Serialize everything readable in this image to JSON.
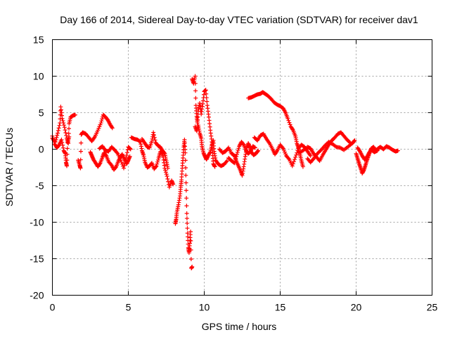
{
  "chart_data": {
    "type": "scatter",
    "title": "Day 166 of 2014, Sidereal Day-to-day VTEC variation (SDTVAR) for receiver dav1",
    "xlabel": "GPS time / hours",
    "ylabel": "SDTVAR / TECUs",
    "xlim": [
      0,
      25
    ],
    "ylim": [
      -20,
      15
    ],
    "xticks": [
      0,
      5,
      10,
      15,
      20,
      25
    ],
    "yticks": [
      -20,
      -15,
      -10,
      -5,
      0,
      5,
      10,
      15
    ],
    "grid": true,
    "marker": "+",
    "color": "#ff0000",
    "segments": [
      {
        "name": "seg-early-spike",
        "points": [
          [
            0.0,
            1.5
          ],
          [
            0.2,
            1.0
          ],
          [
            0.35,
            2.2
          ],
          [
            0.5,
            3.6
          ],
          [
            0.55,
            5.8
          ],
          [
            0.65,
            4.2
          ],
          [
            0.8,
            3.0
          ],
          [
            0.95,
            1.5
          ],
          [
            1.05,
            0.8
          ],
          [
            1.1,
            3.5
          ],
          [
            1.2,
            4.4
          ],
          [
            1.35,
            4.6
          ],
          [
            1.5,
            4.7
          ]
        ]
      },
      {
        "name": "seg-early-low",
        "points": [
          [
            0.0,
            1.8
          ],
          [
            0.15,
            0.7
          ],
          [
            0.3,
            0.2
          ],
          [
            0.45,
            0.6
          ],
          [
            0.6,
            1.3
          ],
          [
            0.75,
            -0.2
          ],
          [
            0.85,
            -0.6
          ],
          [
            0.9,
            -1.8
          ],
          [
            0.95,
            -2.3
          ],
          [
            1.0,
            0.9
          ],
          [
            1.1,
            1.7
          ]
        ]
      },
      {
        "name": "seg-2h",
        "points": [
          [
            1.7,
            -1.5
          ],
          [
            1.8,
            -2.2
          ],
          [
            1.85,
            -2.6
          ],
          [
            1.9,
            2.0
          ],
          [
            2.0,
            2.3
          ],
          [
            2.2,
            2.1
          ],
          [
            2.4,
            1.6
          ],
          [
            2.6,
            1.1
          ],
          [
            2.8,
            1.7
          ],
          [
            3.0,
            2.6
          ],
          [
            3.2,
            3.6
          ],
          [
            3.35,
            4.7
          ],
          [
            3.5,
            4.4
          ],
          [
            3.65,
            4.0
          ],
          [
            3.8,
            3.4
          ],
          [
            3.95,
            2.9
          ]
        ]
      },
      {
        "name": "seg-3-5h",
        "points": [
          [
            2.5,
            -0.4
          ],
          [
            2.6,
            -0.9
          ],
          [
            2.7,
            -1.4
          ],
          [
            2.85,
            -1.9
          ],
          [
            3.0,
            -2.4
          ],
          [
            3.15,
            -1.9
          ],
          [
            3.3,
            -1.1
          ],
          [
            3.4,
            -0.5
          ],
          [
            3.55,
            -0.9
          ],
          [
            3.7,
            -1.7
          ],
          [
            3.9,
            -2.2
          ],
          [
            4.05,
            -2.8
          ],
          [
            4.2,
            -2.4
          ],
          [
            4.35,
            -1.6
          ],
          [
            4.5,
            -1.0
          ],
          [
            4.6,
            -0.7
          ],
          [
            4.75,
            -1.4
          ],
          [
            4.9,
            -2.0
          ],
          [
            5.0,
            -1.5
          ],
          [
            5.1,
            -1.0
          ]
        ]
      },
      {
        "name": "seg-3-5h-b",
        "points": [
          [
            3.1,
            0.1
          ],
          [
            3.3,
            0.4
          ],
          [
            3.5,
            -0.2
          ],
          [
            3.7,
            -0.3
          ],
          [
            3.9,
            0.3
          ],
          [
            4.1,
            -0.1
          ],
          [
            4.3,
            -0.6
          ],
          [
            4.5,
            -1.5
          ],
          [
            4.7,
            -2.6
          ],
          [
            4.85,
            -1.2
          ],
          [
            5.0,
            0.3
          ],
          [
            5.15,
            0.0
          ]
        ]
      },
      {
        "name": "seg-5-7h",
        "points": [
          [
            5.2,
            1.6
          ],
          [
            5.4,
            1.4
          ],
          [
            5.6,
            1.3
          ],
          [
            5.8,
            1.0
          ],
          [
            5.9,
            -0.2
          ],
          [
            6.0,
            -0.8
          ],
          [
            6.1,
            -1.8
          ],
          [
            6.25,
            -2.5
          ],
          [
            6.4,
            -2.3
          ],
          [
            6.55,
            -1.9
          ],
          [
            6.7,
            -2.7
          ],
          [
            6.85,
            -2.3
          ],
          [
            7.0,
            -1.2
          ],
          [
            7.1,
            -0.4
          ],
          [
            7.2,
            -0.3
          ],
          [
            7.3,
            -1.1
          ],
          [
            7.4,
            -2.6
          ],
          [
            7.55,
            -3.7
          ],
          [
            7.7,
            -5.2
          ],
          [
            7.85,
            -4.3
          ],
          [
            7.95,
            -4.8
          ]
        ]
      },
      {
        "name": "seg-6-7h-b",
        "points": [
          [
            5.9,
            1.4
          ],
          [
            6.1,
            0.8
          ],
          [
            6.25,
            0.3
          ],
          [
            6.4,
            0.2
          ],
          [
            6.55,
            1.1
          ],
          [
            6.65,
            2.3
          ],
          [
            6.8,
            0.9
          ],
          [
            6.95,
            0.5
          ],
          [
            7.1,
            0.3
          ],
          [
            7.25,
            -0.2
          ],
          [
            7.4,
            -0.6
          ],
          [
            7.5,
            -1.6
          ],
          [
            7.6,
            -2.6
          ]
        ]
      },
      {
        "name": "seg-8-9h-dip",
        "points": [
          [
            8.1,
            -10.2
          ],
          [
            8.15,
            -9.6
          ],
          [
            8.2,
            -8.6
          ],
          [
            8.3,
            -7.6
          ],
          [
            8.4,
            -6.4
          ],
          [
            8.45,
            -5.2
          ],
          [
            8.5,
            -4.2
          ],
          [
            8.55,
            -2.6
          ],
          [
            8.6,
            -1.2
          ],
          [
            8.65,
            0.3
          ],
          [
            8.7,
            1.3
          ],
          [
            8.75,
            -0.5
          ],
          [
            8.8,
            -4.6
          ],
          [
            8.85,
            -8.8
          ],
          [
            8.9,
            -11.5
          ],
          [
            8.95,
            -13.5
          ],
          [
            9.0,
            -14.2
          ],
          [
            9.05,
            -12.9
          ],
          [
            9.1,
            -11.3
          ],
          [
            9.15,
            -16.3
          ],
          [
            9.2,
            -16.1
          ]
        ]
      },
      {
        "name": "seg-9-10h-peak",
        "points": [
          [
            9.2,
            9.6
          ],
          [
            9.3,
            9.0
          ],
          [
            9.4,
            10.0
          ],
          [
            9.45,
            6.0
          ],
          [
            9.5,
            4.5
          ],
          [
            9.55,
            3.6
          ],
          [
            9.6,
            5.2
          ],
          [
            9.7,
            6.3
          ],
          [
            9.8,
            4.8
          ],
          [
            9.9,
            6.2
          ],
          [
            10.0,
            7.9
          ],
          [
            10.1,
            8.1
          ],
          [
            10.2,
            6.0
          ],
          [
            10.3,
            4.4
          ],
          [
            10.4,
            2.6
          ],
          [
            10.5,
            1.0
          ],
          [
            10.55,
            -0.5
          ],
          [
            10.6,
            -2.0
          ],
          [
            10.7,
            -2.4
          ]
        ]
      },
      {
        "name": "seg-9-11h-b",
        "points": [
          [
            9.4,
            3.1
          ],
          [
            9.5,
            2.5
          ],
          [
            9.6,
            3.3
          ],
          [
            9.7,
            2.2
          ],
          [
            9.8,
            1.5
          ],
          [
            9.85,
            0.4
          ],
          [
            9.95,
            -0.5
          ],
          [
            10.05,
            -1.0
          ],
          [
            10.15,
            -1.4
          ],
          [
            10.25,
            -0.9
          ],
          [
            10.4,
            -0.4
          ],
          [
            10.5,
            0.5
          ],
          [
            10.6,
            1.2
          ],
          [
            10.65,
            -0.3
          ],
          [
            10.75,
            -1.5
          ],
          [
            10.9,
            -2.0
          ],
          [
            11.1,
            -2.3
          ],
          [
            11.3,
            -2.1
          ],
          [
            11.5,
            -1.6
          ]
        ]
      },
      {
        "name": "seg-11-13h",
        "points": [
          [
            11.0,
            0.0
          ],
          [
            11.2,
            -0.5
          ],
          [
            11.4,
            -0.3
          ],
          [
            11.6,
            0.2
          ],
          [
            11.8,
            -0.6
          ],
          [
            12.0,
            -0.9
          ],
          [
            12.1,
            -1.6
          ],
          [
            12.25,
            -2.3
          ],
          [
            12.4,
            -3.0
          ],
          [
            12.5,
            -3.6
          ],
          [
            12.6,
            -2.4
          ],
          [
            12.7,
            -1.0
          ],
          [
            12.8,
            0.2
          ],
          [
            12.9,
            0.8
          ],
          [
            13.0,
            0.3
          ],
          [
            13.1,
            -0.4
          ],
          [
            13.25,
            -0.8
          ],
          [
            13.4,
            -0.6
          ],
          [
            13.55,
            -0.2
          ]
        ]
      },
      {
        "name": "seg-11-13h-b",
        "points": [
          [
            11.6,
            -1.2
          ],
          [
            11.8,
            -1.6
          ],
          [
            12.0,
            -1.9
          ],
          [
            12.15,
            -0.7
          ],
          [
            12.3,
            0.4
          ],
          [
            12.45,
            1.0
          ],
          [
            12.6,
            0.6
          ],
          [
            12.75,
            -0.2
          ],
          [
            12.9,
            -0.6
          ],
          [
            13.05,
            -0.3
          ],
          [
            13.2,
            0.4
          ],
          [
            13.35,
            0.2
          ]
        ]
      },
      {
        "name": "seg-13-16h-arc",
        "points": [
          [
            12.9,
            7.0
          ],
          [
            13.1,
            7.1
          ],
          [
            13.3,
            7.3
          ],
          [
            13.5,
            7.5
          ],
          [
            13.7,
            7.6
          ],
          [
            13.85,
            7.8
          ],
          [
            14.0,
            7.6
          ],
          [
            14.2,
            7.3
          ],
          [
            14.4,
            6.9
          ],
          [
            14.6,
            6.4
          ],
          [
            14.8,
            6.1
          ],
          [
            15.0,
            5.9
          ],
          [
            15.2,
            5.6
          ],
          [
            15.35,
            5.0
          ],
          [
            15.5,
            4.2
          ],
          [
            15.7,
            3.1
          ],
          [
            15.85,
            2.6
          ],
          [
            16.0,
            1.8
          ],
          [
            16.1,
            0.8
          ],
          [
            16.2,
            0.2
          ],
          [
            16.3,
            -0.7
          ],
          [
            16.4,
            -1.6
          ],
          [
            16.5,
            -2.4
          ]
        ]
      },
      {
        "name": "seg-13-17h",
        "points": [
          [
            13.3,
            1.6
          ],
          [
            13.5,
            1.2
          ],
          [
            13.7,
            1.9
          ],
          [
            13.9,
            2.1
          ],
          [
            14.1,
            1.4
          ],
          [
            14.3,
            0.8
          ],
          [
            14.5,
            0.0
          ],
          [
            14.65,
            -0.7
          ],
          [
            14.8,
            -0.2
          ],
          [
            15.0,
            0.6
          ],
          [
            15.2,
            0.1
          ],
          [
            15.4,
            -0.9
          ],
          [
            15.6,
            -1.4
          ],
          [
            15.8,
            -2.3
          ],
          [
            16.0,
            -1.1
          ],
          [
            16.2,
            0.1
          ],
          [
            16.4,
            0.6
          ],
          [
            16.6,
            0.3
          ],
          [
            16.8,
            -0.3
          ],
          [
            17.0,
            -0.9
          ]
        ]
      },
      {
        "name": "seg-16-19h",
        "points": [
          [
            16.2,
            -0.5
          ],
          [
            16.5,
            -0.2
          ],
          [
            16.8,
            0.3
          ],
          [
            17.0,
            0.1
          ],
          [
            17.2,
            -0.6
          ],
          [
            17.4,
            -1.1
          ],
          [
            17.6,
            -1.6
          ],
          [
            17.8,
            -0.8
          ],
          [
            18.0,
            -0.1
          ],
          [
            18.2,
            0.6
          ],
          [
            18.4,
            1.2
          ],
          [
            18.6,
            1.6
          ],
          [
            18.8,
            2.1
          ],
          [
            19.0,
            2.3
          ],
          [
            19.2,
            1.8
          ],
          [
            19.4,
            1.3
          ],
          [
            19.6,
            0.9
          ]
        ]
      },
      {
        "name": "seg-16-19h-b",
        "points": [
          [
            16.8,
            -1.3
          ],
          [
            17.0,
            -1.8
          ],
          [
            17.2,
            -1.3
          ],
          [
            17.45,
            -0.6
          ],
          [
            17.7,
            -0.1
          ],
          [
            17.95,
            0.5
          ],
          [
            18.2,
            1.0
          ],
          [
            18.45,
            0.7
          ],
          [
            18.7,
            0.3
          ],
          [
            18.95,
            0.2
          ],
          [
            19.2,
            -0.1
          ],
          [
            19.5,
            0.4
          ],
          [
            19.75,
            0.8
          ],
          [
            19.9,
            1.2
          ]
        ]
      },
      {
        "name": "seg-20-23h",
        "points": [
          [
            20.0,
            -0.6
          ],
          [
            20.1,
            -1.3
          ],
          [
            20.2,
            -2.0
          ],
          [
            20.3,
            -2.6
          ],
          [
            20.4,
            -3.3
          ],
          [
            20.5,
            -2.9
          ],
          [
            20.6,
            -2.3
          ],
          [
            20.7,
            -1.6
          ],
          [
            20.8,
            -1.0
          ],
          [
            20.9,
            -0.4
          ],
          [
            21.0,
            0.1
          ],
          [
            21.15,
            0.3
          ],
          [
            21.3,
            -0.2
          ],
          [
            21.45,
            0.1
          ],
          [
            21.6,
            0.3
          ],
          [
            21.8,
            0.0
          ],
          [
            22.0,
            0.4
          ],
          [
            22.2,
            0.2
          ],
          [
            22.4,
            -0.1
          ],
          [
            22.6,
            -0.3
          ],
          [
            22.75,
            -0.2
          ]
        ]
      },
      {
        "name": "seg-20-21h-b",
        "points": [
          [
            20.1,
            0.2
          ],
          [
            20.25,
            -0.3
          ],
          [
            20.4,
            -0.9
          ],
          [
            20.55,
            -1.4
          ],
          [
            20.7,
            -1.1
          ],
          [
            20.85,
            -0.5
          ],
          [
            21.0,
            -0.1
          ],
          [
            21.2,
            -0.4
          ],
          [
            21.4,
            -0.2
          ]
        ]
      }
    ]
  }
}
